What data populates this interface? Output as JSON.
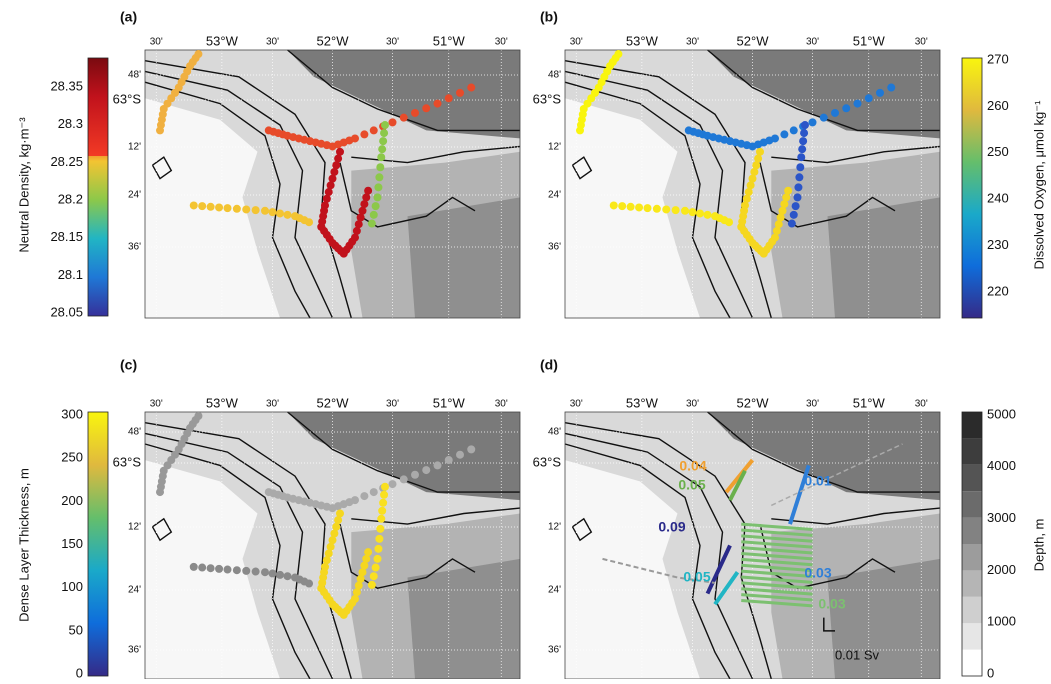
{
  "panels": [
    {
      "label": "(a)",
      "colorbar": {
        "title": "Neutral Density, kg·m⁻³",
        "ticks": [
          "28.35",
          "28.3",
          "28.25",
          "28.2",
          "28.15",
          "28.1",
          "28.05"
        ]
      }
    },
    {
      "label": "(b)",
      "colorbar": {
        "title": "Dissolved Oxygen, μmol kg⁻¹",
        "ticks": [
          "270",
          "260",
          "250",
          "240",
          "230",
          "220"
        ]
      }
    },
    {
      "label": "(c)",
      "colorbar": {
        "title": "Dense Layer Thickness, m",
        "ticks": [
          "300",
          "250",
          "200",
          "150",
          "100",
          "50",
          "0"
        ]
      }
    },
    {
      "label": "(d)",
      "colorbar": {
        "title": "Depth, m",
        "ticks": [
          "5000",
          "4000",
          "3000",
          "2000",
          "1000",
          "0"
        ]
      },
      "annotations": [
        "0.04",
        "0.05",
        "0.01",
        "0.09",
        "0.03",
        "0.05",
        "0.03",
        "0.01 Sv"
      ]
    }
  ],
  "longitude_ticks": [
    "30'",
    "53°W",
    "30'",
    "52°W",
    "30'",
    "51°W",
    "30'"
  ],
  "latitude_ticks": [
    "48'",
    "63°S",
    "12'",
    "24'",
    "36'"
  ]
}
